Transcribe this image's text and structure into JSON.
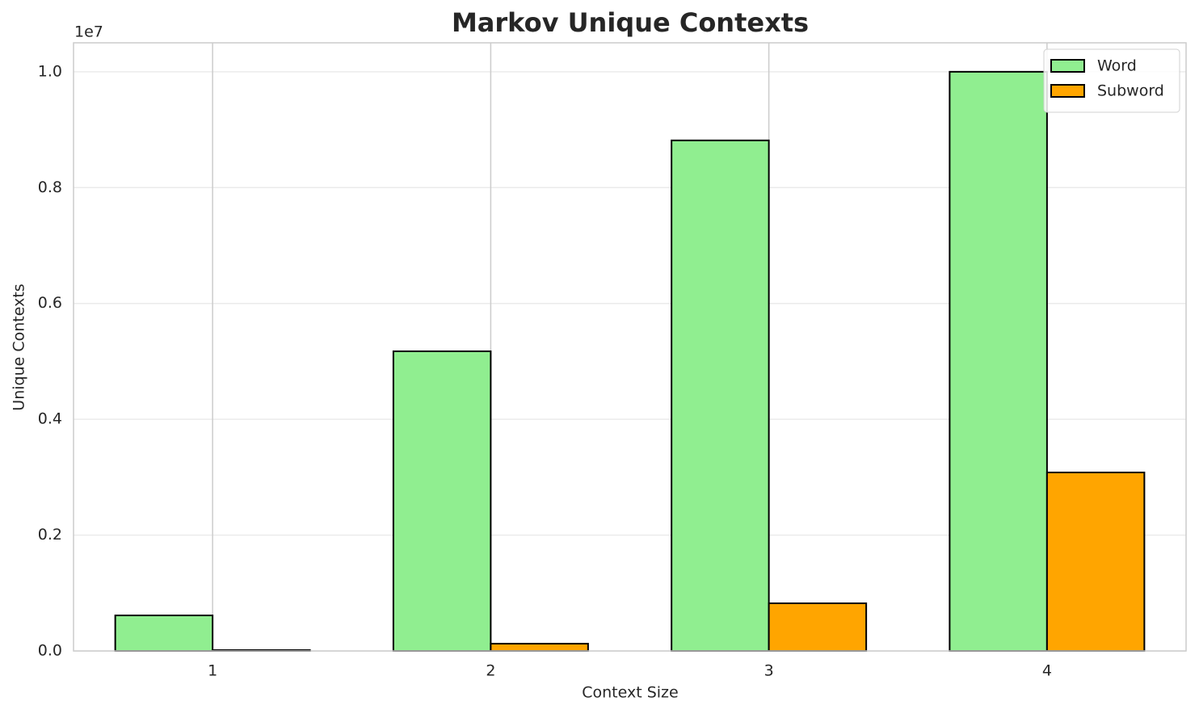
{
  "chart_data": {
    "type": "bar",
    "title": "Markov Unique Contexts",
    "x_label": "Context Size",
    "y_label": "Unique Contexts",
    "y_offset_label": "1e7",
    "categories": [
      "1",
      "2",
      "3",
      "4"
    ],
    "series": [
      {
        "name": "Word",
        "color": "#90ee90",
        "values": [
          614000,
          5174000,
          8815000,
          10000000
        ]
      },
      {
        "name": "Subword",
        "color": "#ffa500",
        "values": [
          15000,
          126000,
          823000,
          3082000
        ]
      }
    ],
    "ylim": [
      0,
      10500000
    ],
    "yticks": [
      {
        "value": 0,
        "label": "0.0"
      },
      {
        "value": 2000000,
        "label": "0.2"
      },
      {
        "value": 4000000,
        "label": "0.4"
      },
      {
        "value": 6000000,
        "label": "0.6"
      },
      {
        "value": 8000000,
        "label": "0.8"
      },
      {
        "value": 10000000,
        "label": "1.0"
      }
    ],
    "grid": true,
    "legend": "upper right"
  }
}
